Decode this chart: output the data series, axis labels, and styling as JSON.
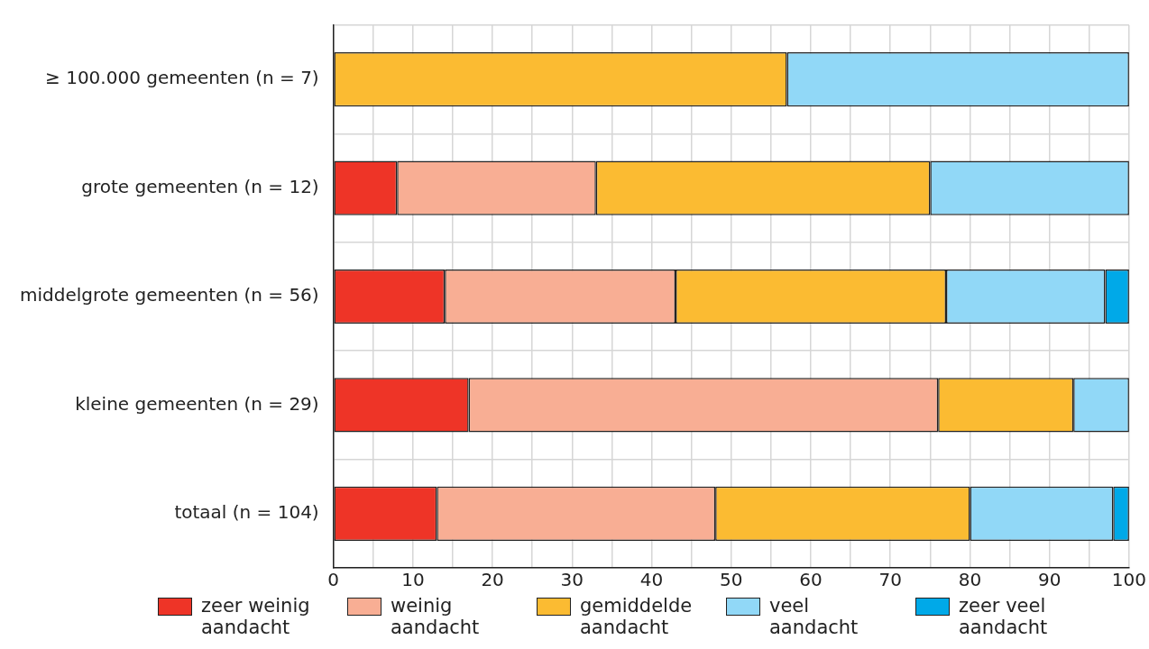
{
  "chart_data": {
    "type": "bar",
    "orientation": "horizontal",
    "stacked": true,
    "categories": [
      "≥ 100.000 gemeenten (n = 7)",
      "grote gemeenten (n = 12)",
      "middelgrote gemeenten (n = 56)",
      "kleine gemeenten (n = 29)",
      "totaal (n = 104)"
    ],
    "series": [
      {
        "name": "zeer weinig aandacht",
        "color": "#ee3427",
        "values": [
          0,
          8,
          14,
          17,
          13
        ]
      },
      {
        "name": "weinig aandacht",
        "color": "#f8ae94",
        "values": [
          0,
          25,
          29,
          59,
          35
        ]
      },
      {
        "name": "gemiddelde aandacht",
        "color": "#fbbb32",
        "values": [
          57,
          42,
          34,
          17,
          32
        ]
      },
      {
        "name": "veel aandacht",
        "color": "#91d8f7",
        "values": [
          43,
          25,
          20,
          7,
          18
        ]
      },
      {
        "name": "zeer veel aandacht",
        "color": "#00a9e8",
        "values": [
          0,
          0,
          3,
          0,
          2
        ]
      }
    ],
    "xlim": [
      0,
      100
    ],
    "xticks": [
      0,
      {
        "value": 5,
        "label": null
      },
      10,
      {
        "value": 15,
        "label": null
      },
      20,
      {
        "value": 25,
        "label": null
      },
      30,
      {
        "value": 35,
        "label": null
      },
      40,
      {
        "value": 45,
        "label": null
      },
      50,
      {
        "value": 55,
        "label": null
      },
      60,
      {
        "value": 65,
        "label": null
      },
      70,
      {
        "value": 75,
        "label": null
      },
      80,
      {
        "value": 85,
        "label": null
      },
      90,
      {
        "value": 95,
        "label": null
      },
      100
    ],
    "grid": true,
    "legend": "bottom"
  }
}
